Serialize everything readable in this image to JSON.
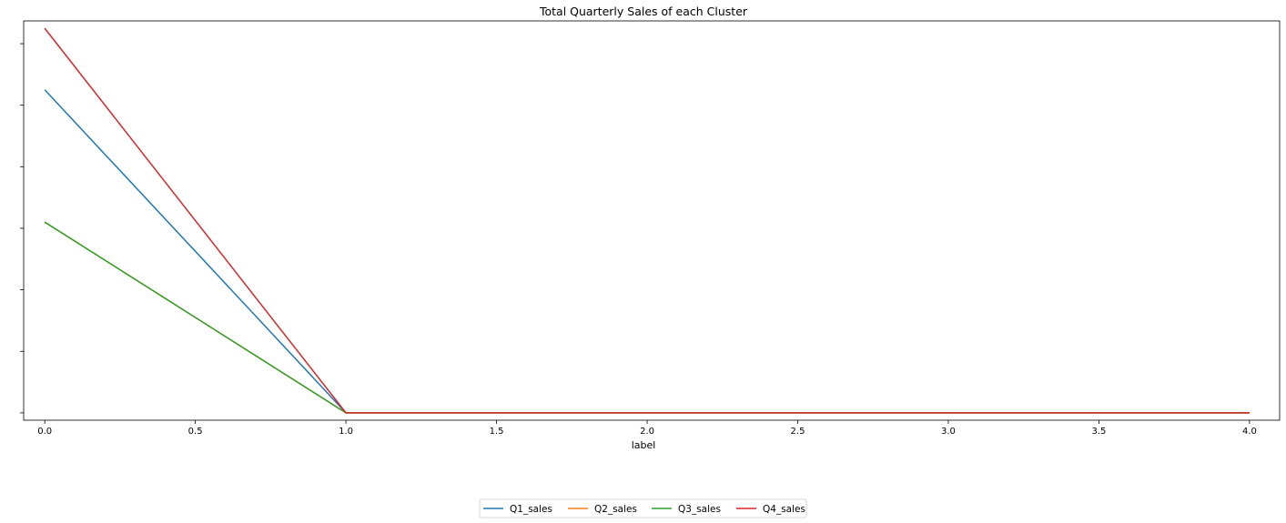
{
  "chart_data": {
    "type": "line",
    "title": "Total Quarterly Sales of each Cluster",
    "xlabel": "label",
    "ylabel": "",
    "x": [
      0.0,
      1.0,
      2.0,
      3.0,
      4.0
    ],
    "xlim": [
      -0.07,
      4.1
    ],
    "ylim": [
      -0.012,
      0.637
    ],
    "x_ticks": [
      0.0,
      0.5,
      1.0,
      1.5,
      2.0,
      2.5,
      3.0,
      3.5,
      4.0
    ],
    "x_tick_labels": [
      "0.0",
      "0.5",
      "1.0",
      "1.5",
      "2.0",
      "2.5",
      "3.0",
      "3.5",
      "4.0"
    ],
    "y_ticks": [
      0.0,
      0.1,
      0.2,
      0.3,
      0.4,
      0.5,
      0.6
    ],
    "y_tick_labels_visible": false,
    "grid": false,
    "legend_position": "bottom-center",
    "series": [
      {
        "name": "Q1_sales",
        "color": "#1f77b4",
        "values": [
          0.525,
          0.0,
          0.0,
          0.0,
          0.0
        ]
      },
      {
        "name": "Q2_sales",
        "color": "#ff7f0e",
        "values": [
          0.31,
          0.0,
          0.0,
          0.0,
          0.0
        ]
      },
      {
        "name": "Q3_sales",
        "color": "#2ca02c",
        "values": [
          0.31,
          0.0,
          0.0,
          0.0,
          0.0
        ]
      },
      {
        "name": "Q4_sales",
        "color": "#d62728",
        "values": [
          0.625,
          0.0,
          0.0,
          0.0,
          0.0
        ]
      }
    ]
  }
}
